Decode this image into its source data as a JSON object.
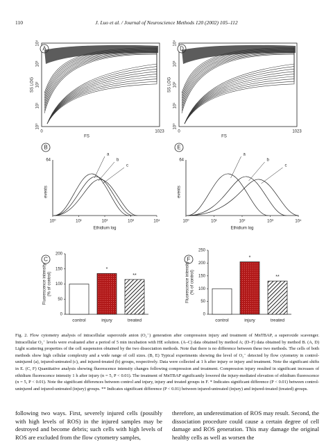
{
  "header": {
    "page_number": "110",
    "journal": "J. Luo et al. / Journal of Neuroscience Methods 120 (2002) 105–112"
  },
  "figure": {
    "scatter_panels": [
      {
        "label": "A",
        "x_label": "FS",
        "y_label": "SS LOG",
        "xticks": [
          "0",
          "1023"
        ],
        "yticks": [
          "10⁰",
          "10¹",
          "10²",
          "10³",
          "10⁴"
        ]
      },
      {
        "label": "D",
        "x_label": "FS",
        "y_label": "SS LOG",
        "xticks": [
          "0",
          "1023"
        ],
        "yticks": [
          "10⁰",
          "10¹",
          "10²",
          "10³",
          "10⁴"
        ]
      }
    ],
    "histogram_panels": [
      {
        "label": "B",
        "y_label": "events",
        "y_max": "64",
        "x_label": "Ethidium log",
        "xticks": [
          "10⁰",
          "10¹",
          "10²",
          "10³",
          "10⁴"
        ],
        "curve_labels": [
          "a",
          "b",
          "c"
        ]
      },
      {
        "label": "E",
        "y_label": "events",
        "y_max": "64",
        "x_label": "Ethidium log",
        "xticks": [
          "10⁰",
          "10¹",
          "10²",
          "10³",
          "10⁴"
        ],
        "curve_labels": [
          "a",
          "b",
          "c"
        ]
      }
    ],
    "bar_panels": [
      {
        "label": "C",
        "y_label_lines": [
          "Fluorescence intensity",
          "(% of control)"
        ],
        "categories": [
          "control",
          "injury",
          "treated"
        ],
        "values": [
          100,
          135,
          115
        ],
        "annotations": [
          "*",
          "**"
        ],
        "ylim": [
          0,
          200
        ],
        "yticks": [
          0,
          50,
          100,
          150,
          200
        ]
      },
      {
        "label": "F",
        "y_label_lines": [
          "Fluorescence intensity",
          "(% of control)"
        ],
        "categories": [
          "control",
          "injury",
          "treated"
        ],
        "values": [
          100,
          205,
          130
        ],
        "annotations": [
          "*",
          "**"
        ],
        "ylim": [
          0,
          250
        ],
        "yticks": [
          0,
          50,
          100,
          150,
          200,
          250
        ]
      }
    ]
  },
  "caption": "Fig. 2. Flow cytometry analysis of intracellular superoxide anion (O₂⁻) generation after compression injury and treatment of MnTBAP, a superoxide scavenger. Intracellular O₂⁻ levels were evaluated after a period of 5 min incubation with HE solution. (A–C) data obtained by method A; (D–F) data obtained by method B. (A, D) Light scattering properties of the cell suspension obtained by the two dissociation methods. Note that there is no difference between these two methods. The cells of both methods show high cellular complexity and a wide range of cell sizes. (B, E) Typical experiments showing the level of O₂⁻ detected by flow cytometry in control-uninjured (a), injured-untreated (c), and injured-treated (b) groups, respectively. Data were collected at 1 h after injury or injury and treatment. Note the significant shifts in E. (C, F) Quantitative analysis showing fluorescence intensity changes following compression and treatment. Compression injury resulted in significant increases of ethidium fluorescence intensity 1 h after injury (n = 5, P < 0.01). The treatment of MnTBAP significantly lowered the injury-mediated elevation of ethidium fluorescence (n = 5, P < 0.01). Note the significant differences between control and injury, injury and treated groups in F. * Indicates significant difference (P < 0.01) between control-uninjured and injured-untreated (injury) groups. ** Indicates significant difference (P < 0.01) between injured-untreated (injury) and injured-treated (treated) groups.",
  "body": {
    "left": "following two ways. First, severely injured cells (possibly with high levels of ROS) in the injured samples may be destroyed and become debris; such cells with high levels of ROS are excluded from the flow cytometry samples,",
    "right": "therefore, an underestimation of ROS may result. Second, the dissociation procedure could cause a certain degree of cell damage and ROS generation. This may damage the original healthy cells as well as worsen the"
  }
}
